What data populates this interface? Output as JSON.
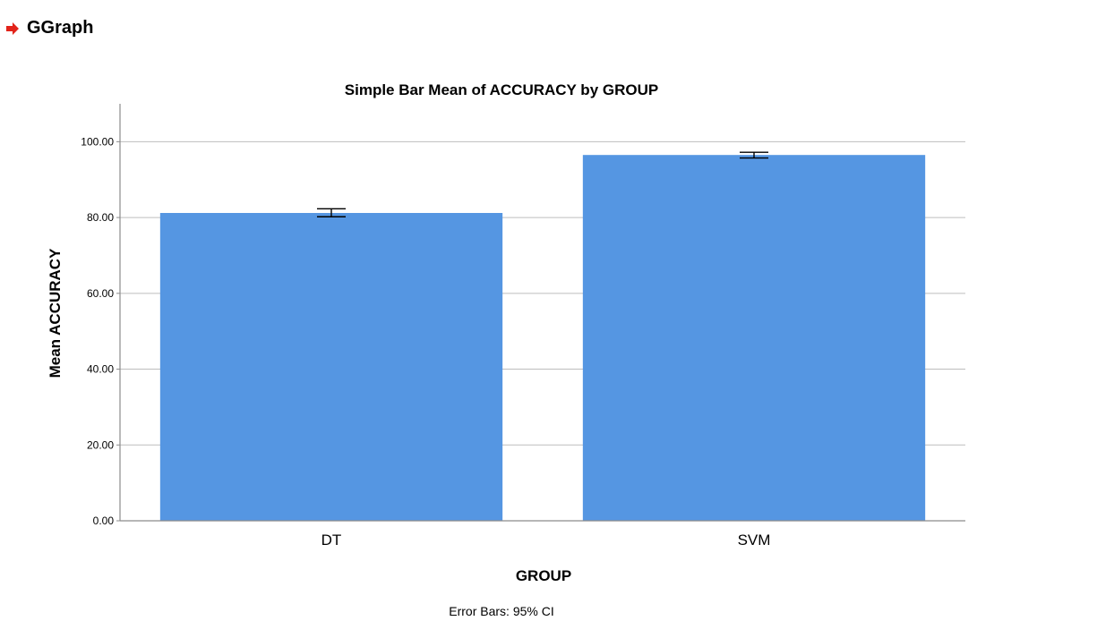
{
  "header": {
    "title": "GGraph",
    "icon": "arrow-right-icon",
    "icon_color": "#e2231a"
  },
  "chart_data": {
    "type": "bar",
    "title": "Simple Bar Mean of ACCURACY by GROUP",
    "xlabel": "GROUP",
    "ylabel": "Mean ACCURACY",
    "categories": [
      "DT",
      "SVM"
    ],
    "values": [
      81.2,
      96.5
    ],
    "error_bars": {
      "type": "95% CI",
      "lower": [
        80.2,
        95.7
      ],
      "upper": [
        82.3,
        97.2
      ]
    },
    "ylim": [
      0,
      110
    ],
    "yticks": [
      0,
      20,
      40,
      60,
      80,
      100
    ],
    "ytick_labels": [
      "0.00",
      "20.00",
      "40.00",
      "60.00",
      "80.00",
      "100.00"
    ],
    "grid": true,
    "bar_color": "#5596e2",
    "footnote": "Error Bars: 95% CI"
  }
}
